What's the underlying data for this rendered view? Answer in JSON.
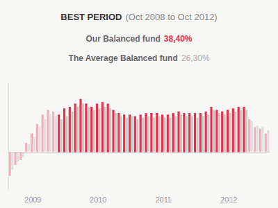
{
  "chart_data": {
    "type": "bar",
    "title": "BEST PERIOD",
    "subtitle": "(Oct 2008 to Oct 2012)",
    "annotations": [
      {
        "text": "Our Balanced fund",
        "value": "38,40%",
        "color": "#e8304a"
      },
      {
        "text": "The Average Balanced fund",
        "value": "26,30%"
      }
    ],
    "categories": [
      null,
      null,
      null,
      null,
      "2009",
      null,
      null,
      null,
      null,
      null,
      null,
      null,
      null,
      null,
      null,
      null,
      "2010",
      null,
      null,
      null,
      null,
      null,
      null,
      null,
      null,
      null,
      null,
      null,
      "2011",
      null,
      null,
      null,
      null,
      null,
      null,
      null,
      null,
      null,
      null,
      null,
      "2012",
      null,
      null,
      null,
      null,
      null,
      null,
      null
    ],
    "series": [
      {
        "values": [
          -7.5,
          -4.0,
          -2.5,
          3.0,
          6.0,
          9.0,
          12.0,
          13.5,
          13.0,
          12.0,
          14.0,
          14.5,
          15.5,
          17.0,
          15.5,
          14.5,
          15.5,
          16.0,
          15.5,
          13.5,
          12.5,
          12.0,
          12.0,
          11.5,
          12.0,
          12.5,
          12.5,
          12.5,
          12.0,
          12.0,
          12.5,
          13.0,
          12.5,
          12.5,
          12.5,
          12.5,
          13.0,
          14.5,
          13.5,
          13.0,
          13.5,
          14.0,
          14.5,
          14.5,
          10.5,
          8.0,
          7.5,
          6.0
        ],
        "colors": [
          "#f0b0bc",
          "#f0b0bc",
          "#f0b0bc",
          "#f0b0bc",
          "#f0b0bc",
          "#f0b0bc",
          "#f0b0bc",
          "#f0b0bc",
          "#f0b0bc",
          "#e8304a",
          "#e8304a",
          "#e8304a",
          "#e8304a",
          "#e8304a",
          "#e8304a",
          "#e8304a",
          "#e8304a",
          "#e8304a",
          "#e8304a",
          "#e8304a",
          "#e8304a",
          "#e8304a",
          "#e8304a",
          "#e8304a",
          "#e8304a",
          "#e8304a",
          "#e8304a",
          "#e8304a",
          "#e8304a",
          "#e8304a",
          "#e8304a",
          "#e8304a",
          "#e8304a",
          "#e8304a",
          "#e8304a",
          "#e8304a",
          "#e8304a",
          "#e8304a",
          "#e8304a",
          "#e8304a",
          "#e8304a",
          "#e8304a",
          "#e8304a",
          "#e8304a",
          "#f0b0bc",
          "#f0b0bc",
          "#f0b0bc",
          "#f0b0bc"
        ]
      },
      {
        "values": [
          -5.5,
          -3.0,
          -1.5,
          2.5,
          5.0,
          8.0,
          10.5,
          12.0,
          11.5,
          10.5,
          11.5,
          13.0,
          14.5,
          15.5,
          14.5,
          13.5,
          14.0,
          14.5,
          14.0,
          12.5,
          11.5,
          11.0,
          11.5,
          10.5,
          11.0,
          11.5,
          11.0,
          11.5,
          11.0,
          11.0,
          11.5,
          12.0,
          11.5,
          11.5,
          11.0,
          11.5,
          12.0,
          13.5,
          12.5,
          12.0,
          12.5,
          13.0,
          13.5,
          13.5,
          10.0,
          8.5,
          8.0,
          7.0
        ],
        "colors": [
          "#e0e0e0",
          "#e0e0e0",
          "#e0e0e0",
          "#e0e0e0",
          "#e0e0e0",
          "#e0e0e0",
          "#e0e0e0",
          "#e0e0e0",
          "#e0e0e0",
          "#c8c8c8",
          "#c8c8c8",
          "#c8c8c8",
          "#c8c8c8",
          "#c8c8c8",
          "#c8c8c8",
          "#c8c8c8",
          "#c8c8c8",
          "#c8c8c8",
          "#c8c8c8",
          "#c8c8c8",
          "#c8c8c8",
          "#c8c8c8",
          "#c8c8c8",
          "#c8c8c8",
          "#c8c8c8",
          "#c8c8c8",
          "#c8c8c8",
          "#c8c8c8",
          "#c8c8c8",
          "#c8c8c8",
          "#c8c8c8",
          "#c8c8c8",
          "#c8c8c8",
          "#c8c8c8",
          "#c8c8c8",
          "#c8c8c8",
          "#c8c8c8",
          "#c8c8c8",
          "#c8c8c8",
          "#c8c8c8",
          "#c8c8c8",
          "#c8c8c8",
          "#c8c8c8",
          "#c8c8c8",
          "#e0e0e0",
          "#e0e0e0",
          "#e0e0e0",
          "#e0e0e0"
        ]
      }
    ],
    "ylim": [
      -12,
      22
    ],
    "tick_labels": "x",
    "grid": false
  }
}
